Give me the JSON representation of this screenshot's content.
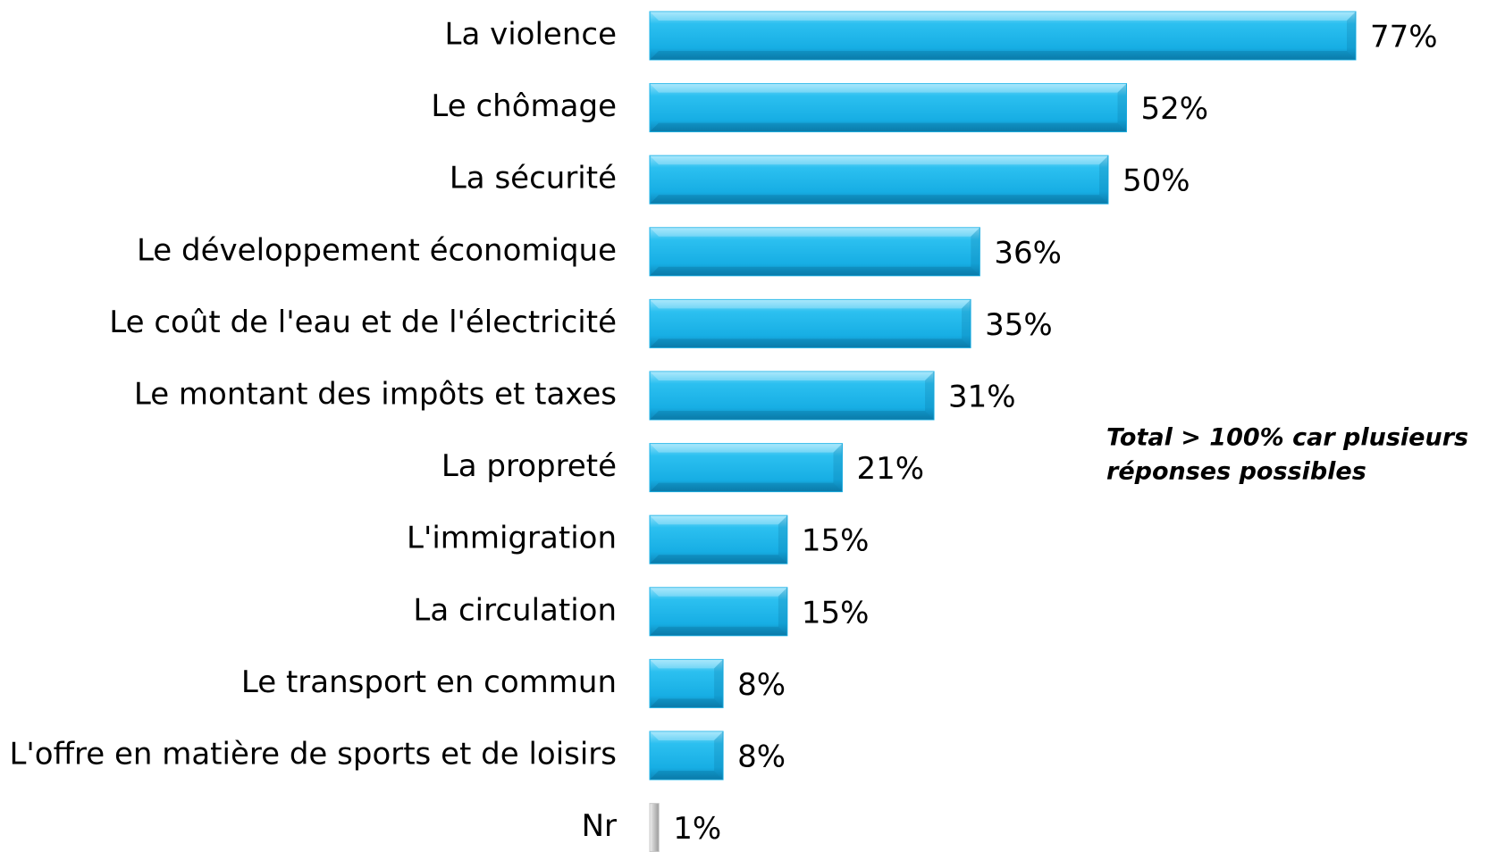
{
  "chart_data": {
    "type": "bar",
    "orientation": "horizontal",
    "categories": [
      "La violence",
      "Le chômage",
      "La sécurité",
      "Le développement économique",
      "Le coût de l'eau et de l'électricité",
      "Le montant des impôts et taxes",
      "La propreté",
      "L'immigration",
      "La circulation",
      "Le transport en commun",
      "L'offre en matière de sports et de loisirs",
      "Nr"
    ],
    "values": [
      77,
      52,
      50,
      36,
      35,
      31,
      21,
      15,
      15,
      8,
      8,
      1
    ],
    "value_labels": [
      "77%",
      "52%",
      "50%",
      "36%",
      "35%",
      "31%",
      "21%",
      "15%",
      "15%",
      "8%",
      "8%",
      "1%"
    ],
    "colors": [
      "#1bb3e8",
      "#1bb3e8",
      "#1bb3e8",
      "#1bb3e8",
      "#1bb3e8",
      "#1bb3e8",
      "#1bb3e8",
      "#1bb3e8",
      "#1bb3e8",
      "#1bb3e8",
      "#1bb3e8",
      "#c8c8c8"
    ],
    "annotation": [
      "Total > 100% car plusieurs",
      "réponses possibles"
    ]
  }
}
